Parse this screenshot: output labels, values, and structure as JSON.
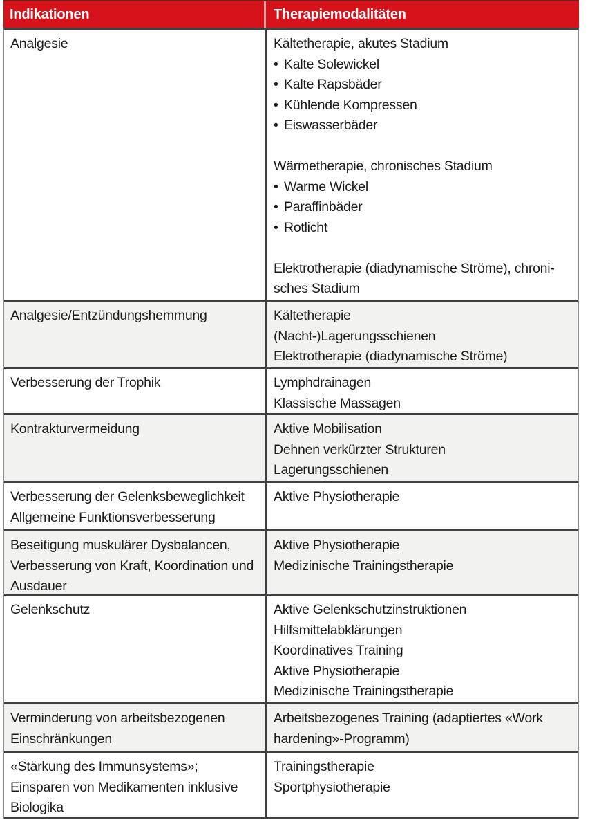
{
  "table": {
    "colors": {
      "header_bg": "#d6121b",
      "header_text": "#ffffff",
      "divider": "#3f3f3f",
      "shaded_row_bg": "#f2f2f1",
      "text": "#1c1c1c"
    },
    "headers": [
      "Indikationen",
      "Therapiemodalitäten"
    ],
    "rows": [
      {
        "indication_lines": [
          "Analgesie"
        ],
        "therapy_groups": [
          {
            "title_lines": [
              "Kältetherapie, akutes Stadium"
            ],
            "bullets": [
              "Kalte Solewickel",
              "Kalte Rapsbäder",
              "Kühlende Kompressen",
              "Eiswasserbäder"
            ]
          },
          {
            "title_lines": [
              "Wärmetherapie, chronisches Stadium"
            ],
            "bullets": [
              "Warme Wickel",
              "Paraffinbäder",
              "Rotlicht"
            ]
          },
          {
            "title_lines": [
              "Elektrotherapie (diadynamische Ströme), chroni-",
              "sches Stadium"
            ],
            "bullets": []
          }
        ]
      },
      {
        "indication_lines": [
          "Analgesie/Entzündungshemmung"
        ],
        "therapy_groups": [
          {
            "title_lines": [
              "Kältetherapie",
              "(Nacht-)Lagerungsschienen",
              "Elektrotherapie (diadynamische Ströme)"
            ],
            "bullets": []
          }
        ]
      },
      {
        "indication_lines": [
          "Verbesserung der Trophik"
        ],
        "therapy_groups": [
          {
            "title_lines": [
              "Lymphdrainagen",
              "Klassische Massagen"
            ],
            "bullets": []
          }
        ]
      },
      {
        "indication_lines": [
          "Kontrakturvermeidung"
        ],
        "therapy_groups": [
          {
            "title_lines": [
              "Aktive Mobilisation",
              "Dehnen verkürzter Strukturen",
              "Lagerungsschienen"
            ],
            "bullets": []
          }
        ]
      },
      {
        "indication_lines": [
          "Verbesserung der Gelenksbeweglichkeit",
          "Allgemeine Funktionsverbesserung"
        ],
        "therapy_groups": [
          {
            "title_lines": [
              "Aktive Physiotherapie"
            ],
            "bullets": []
          }
        ]
      },
      {
        "indication_lines": [
          "Beseitigung muskulärer Dysbalancen,",
          "Verbesserung von Kraft, Koordination und",
          "Ausdauer"
        ],
        "therapy_groups": [
          {
            "title_lines": [
              "Aktive Physiotherapie",
              "Medizinische Trainingstherapie"
            ],
            "bullets": []
          }
        ]
      },
      {
        "indication_lines": [
          "Gelenkschutz"
        ],
        "therapy_groups": [
          {
            "title_lines": [
              "Aktive Gelenkschutzinstruktionen",
              "Hilfsmittelabklärungen",
              "Koordinatives Training",
              "Aktive Physiotherapie",
              "Medizinische Trainingstherapie"
            ],
            "bullets": []
          }
        ]
      },
      {
        "indication_lines": [
          "Verminderung von arbeitsbezogenen",
          "Einschränkungen"
        ],
        "therapy_groups": [
          {
            "title_lines": [
              "Arbeitsbezogenes Training (adaptiertes «Work",
              "hardening»-Programm)"
            ],
            "bullets": []
          }
        ]
      },
      {
        "indication_lines": [
          "«Stärkung des Immunsystems»;",
          "Einsparen von Medikamenten inklusive",
          "Biologika"
        ],
        "therapy_groups": [
          {
            "title_lines": [
              "Trainingstherapie",
              "Sportphysiotherapie"
            ],
            "bullets": []
          }
        ]
      }
    ]
  }
}
